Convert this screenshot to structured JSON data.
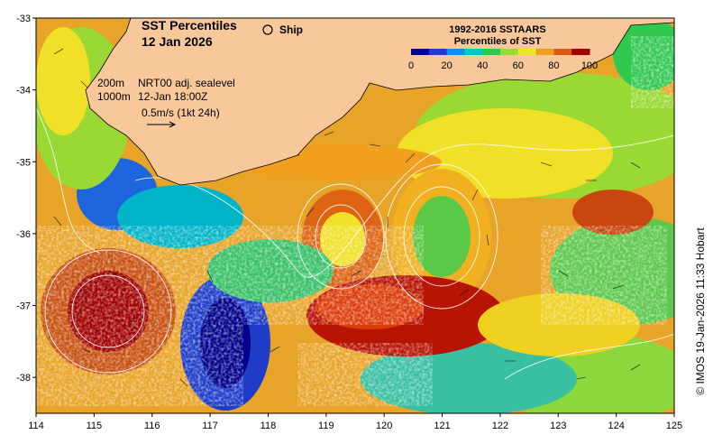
{
  "title": {
    "line1": "SST Percentiles",
    "line2": "12 Jan 2026"
  },
  "ship_label": "Ship",
  "colorbar": {
    "title_line1": "1992-2016 SSTAARS",
    "title_line2": "Percentiles of SST",
    "ticks": [
      "0",
      "20",
      "40",
      "60",
      "80",
      "100"
    ],
    "colors": [
      "#00008b",
      "#1e3cc8",
      "#1e8ce6",
      "#00c8c8",
      "#32c850",
      "#96dc32",
      "#f0e628",
      "#f0a01e",
      "#dc5a14",
      "#a00000"
    ]
  },
  "contour_legend": {
    "line1_depth": "200m",
    "line1_text": "NRT00 adj. sealevel",
    "line2_depth": "1000m",
    "line2_text": "12-Jan 18:00Z",
    "scale_text": "0.5m/s (1kt 24h)"
  },
  "axes": {
    "x_ticks": [
      "114",
      "115",
      "116",
      "117",
      "118",
      "119",
      "120",
      "121",
      "122",
      "123",
      "124",
      "125"
    ],
    "y_ticks": [
      "-33",
      "-34",
      "-35",
      "-36",
      "-37",
      "-38"
    ],
    "x_range": [
      114,
      125
    ],
    "y_range": [
      -38.5,
      -33
    ]
  },
  "copyright": "© IMOS 19-Jan-2026 11:33 Hobart",
  "land_color": "#f8c89a"
}
